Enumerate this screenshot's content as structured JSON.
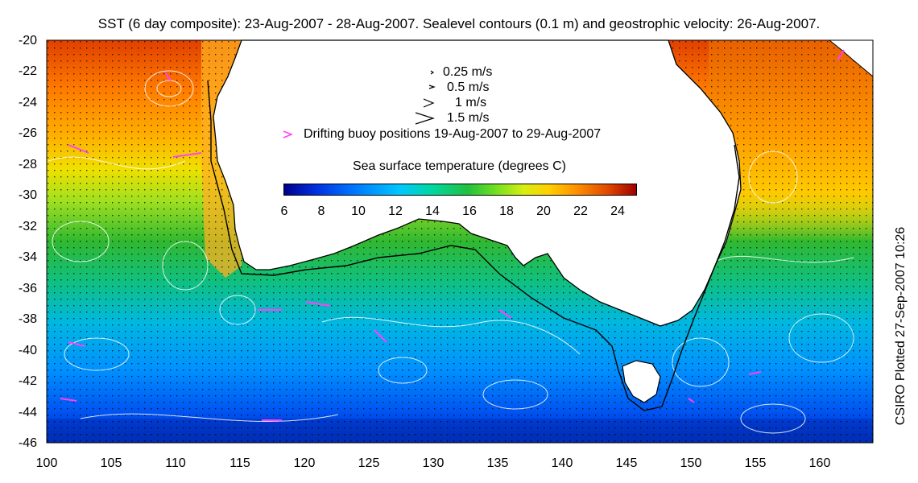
{
  "title": "SST (6 day composite): 23-Aug-2007 - 28-Aug-2007. Sealevel contours (0.1 m) and geostrophic velocity: 26-Aug-2007.",
  "credit": "CSIRO Plotted 27-Sep-2007 10:26",
  "velocity_legend": {
    "items": [
      {
        "label": "0.25 m/s",
        "speed": 0.25
      },
      {
        "label": "0.5 m/s",
        "speed": 0.5
      },
      {
        "label": "1 m/s",
        "speed": 1.0
      },
      {
        "label": "1.5 m/s",
        "speed": 1.5
      }
    ],
    "buoy_label": "Drifting buoy positions 19-Aug-2007 to 29-Aug-2007",
    "buoy_color": "#ff40ff"
  },
  "colorbar": {
    "title": "Sea surface temperature (degrees C)",
    "range": [
      6,
      25
    ],
    "ticks": [
      "6",
      "8",
      "10",
      "12",
      "14",
      "16",
      "18",
      "20",
      "22",
      "24"
    ]
  },
  "axes": {
    "lon_range": [
      100,
      164
    ],
    "lat_range": [
      -46,
      -20
    ],
    "x_ticks": [
      "100",
      "105",
      "110",
      "115",
      "120",
      "125",
      "130",
      "135",
      "140",
      "145",
      "150",
      "155",
      "160"
    ],
    "y_ticks": [
      "-20",
      "-22",
      "-24",
      "-26",
      "-28",
      "-30",
      "-32",
      "-34",
      "-36",
      "-38",
      "-40",
      "-42",
      "-44",
      "-46"
    ]
  },
  "colors": {
    "land": "#ffffff",
    "coastline": "#000000",
    "contours": "#ffffff",
    "shelf_line": "#000000"
  }
}
